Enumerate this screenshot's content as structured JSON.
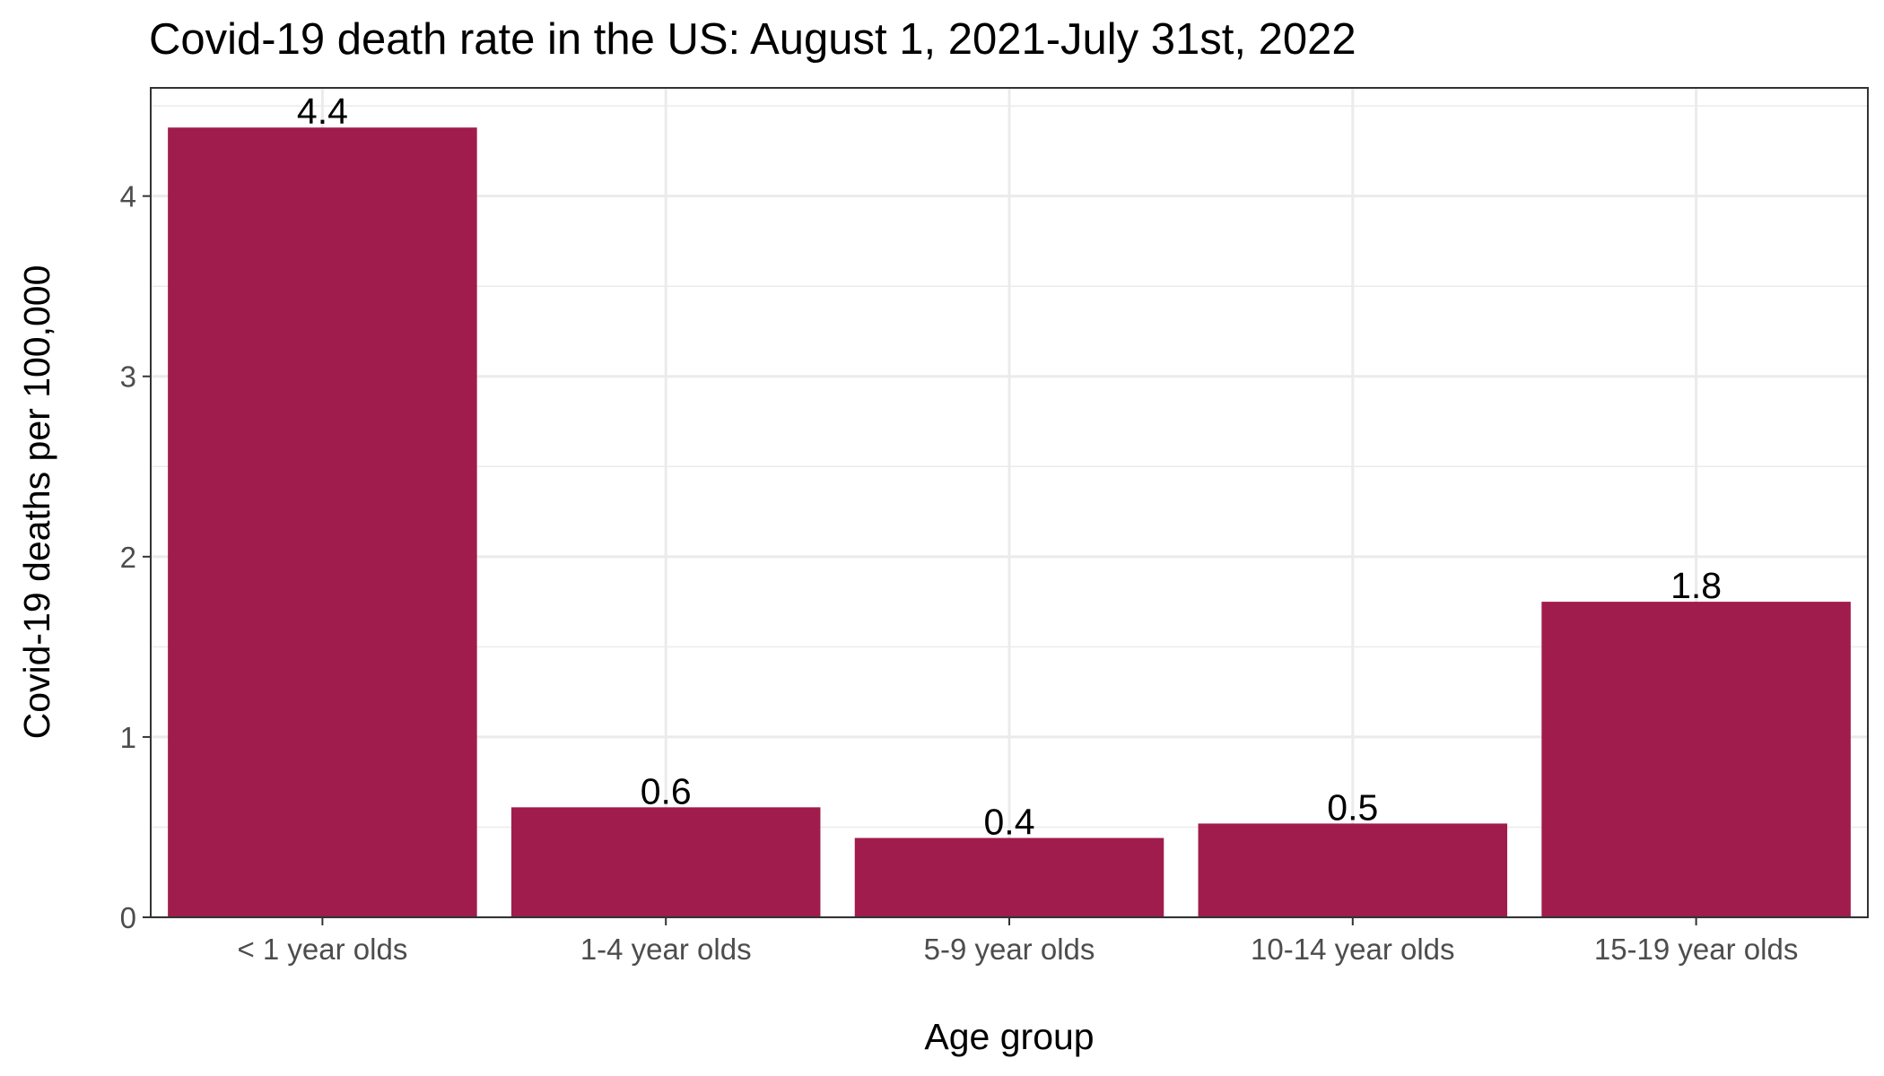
{
  "chart_data": {
    "type": "bar",
    "title": "Covid-19 death rate in the US: August 1, 2021-July 31st, 2022",
    "xlabel": "Age group",
    "ylabel": "Covid-19 deaths per 100,000",
    "categories": [
      "< 1 year olds",
      "1-4 year olds",
      "5-9 year olds",
      "10-14 year olds",
      "15-19 year olds"
    ],
    "values": [
      4.38,
      0.61,
      0.44,
      0.52,
      1.75
    ],
    "data_labels": [
      "4.4",
      "0.6",
      "0.4",
      "0.5",
      "1.8"
    ],
    "ylim": [
      0,
      4.6
    ],
    "yticks": [
      0,
      1,
      2,
      3,
      4
    ],
    "grid": true,
    "legend": "none",
    "colors": {
      "bar": "#A01C4C",
      "gridline": "#EBEBEB",
      "panel_border": "#333333",
      "tick_text": "#4D4D4D"
    }
  }
}
